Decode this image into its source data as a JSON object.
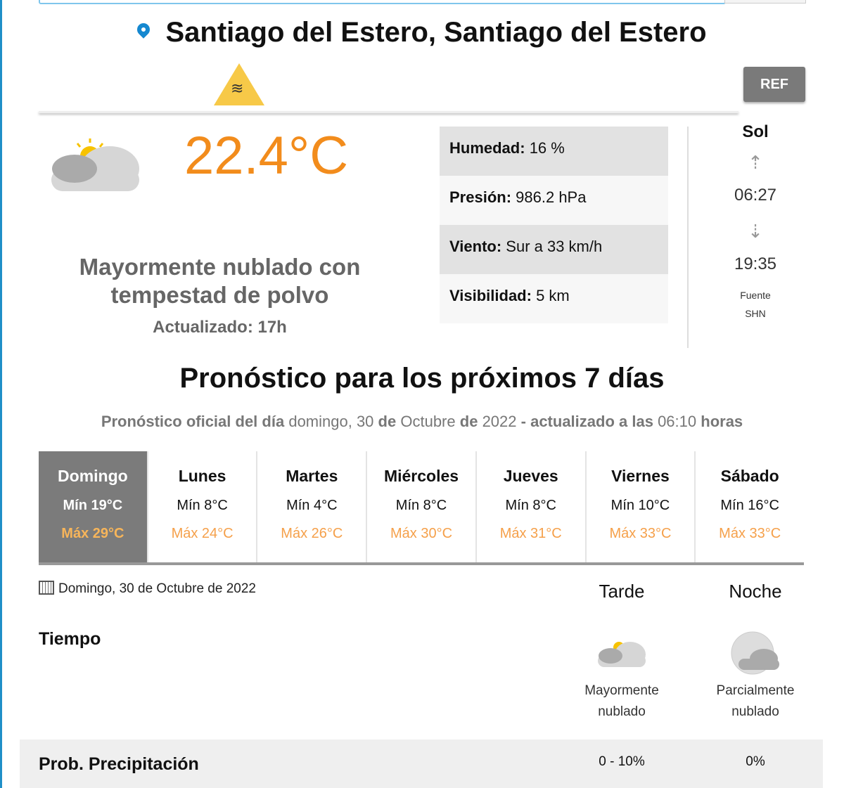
{
  "location": {
    "title": "Santiago del Estero, Santiago del Estero",
    "alert_icon": "dust-storm-warning-icon",
    "alert_color": "#f7c948",
    "ref_label": "REF"
  },
  "current": {
    "temperature": "22.4°C",
    "description": "Mayormente nublado con tempestad de polvo",
    "updated": "Actualizado: 17h",
    "icon": "partly-cloudy-icon",
    "details": [
      {
        "label": "Humedad:",
        "value": "16 %"
      },
      {
        "label": "Presión:",
        "value": "986.2 hPa"
      },
      {
        "label": "Viento:",
        "value": "Sur a 33 km/h"
      },
      {
        "label": "Visibilidad:",
        "value": "5 km"
      }
    ]
  },
  "sun": {
    "title": "Sol",
    "sunrise": "06:27",
    "sunset": "19:35",
    "source_label": "Fuente",
    "source": "SHN"
  },
  "forecast": {
    "title": "Pronóstico para los próximos 7 días",
    "subtitle": {
      "p1": "Pronóstico oficial del día",
      "date": "domingo, 30",
      "p2": "de",
      "month": "Octubre",
      "p3": "de",
      "year": "2022",
      "p4": "- actualizado a las",
      "time": "06:10",
      "p5": "horas"
    },
    "days": [
      {
        "name": "Domingo",
        "min": "Mín 19°C",
        "max": "Máx 29°C"
      },
      {
        "name": "Lunes",
        "min": "Mín 8°C",
        "max": "Máx 24°C"
      },
      {
        "name": "Martes",
        "min": "Mín 4°C",
        "max": "Máx 26°C"
      },
      {
        "name": "Miércoles",
        "min": "Mín 8°C",
        "max": "Máx 30°C"
      },
      {
        "name": "Jueves",
        "min": "Mín 8°C",
        "max": "Máx 31°C"
      },
      {
        "name": "Viernes",
        "min": "Mín 10°C",
        "max": "Máx 33°C"
      },
      {
        "name": "Sábado",
        "min": "Mín 16°C",
        "max": "Máx 33°C"
      }
    ]
  },
  "detail": {
    "date": "Domingo, 30 de Octubre de 2022",
    "periods": [
      "Tarde",
      "Noche"
    ],
    "tiempo_label": "Tiempo",
    "weather": [
      {
        "line1": "Mayormente",
        "line2": "nublado"
      },
      {
        "line1": "Parcialmente",
        "line2": "nublado"
      }
    ],
    "precip_label": "Prob. Precipitación",
    "precip": [
      "0 - 10%",
      "0%"
    ]
  },
  "colors": {
    "accent": "#f28c1c",
    "selected_day": "#7b7b7b",
    "link": "#1588d0"
  }
}
